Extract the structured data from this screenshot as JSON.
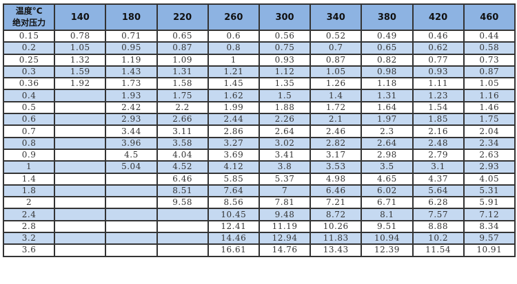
{
  "table": {
    "corner_line1": "温度°C",
    "corner_line2": "绝对压力",
    "columns": [
      "140",
      "180",
      "220",
      "260",
      "300",
      "340",
      "380",
      "420",
      "460"
    ],
    "rows": [
      {
        "pressure": "0.15",
        "values": [
          "0.78",
          "0.71",
          "0.65",
          "0.6",
          "0.56",
          "0.52",
          "0.49",
          "0.46",
          "0.44"
        ]
      },
      {
        "pressure": "0.2",
        "values": [
          "1.05",
          "0.95",
          "0.87",
          "0.8",
          "0.75",
          "0.7",
          "0.65",
          "0.62",
          "0.58"
        ]
      },
      {
        "pressure": "0.25",
        "values": [
          "1.32",
          "1.19",
          "1.09",
          "1",
          "0.93",
          "0.87",
          "0.82",
          "0.77",
          "0.73"
        ]
      },
      {
        "pressure": "0.3",
        "values": [
          "1.59",
          "1.43",
          "1.31",
          "1.21",
          "1.12",
          "1.05",
          "0.98",
          "0.93",
          "0.87"
        ]
      },
      {
        "pressure": "0.36",
        "values": [
          "1.92",
          "1.73",
          "1.58",
          "1.45",
          "1.35",
          "1.26",
          "1.18",
          "1.11",
          "1.05"
        ]
      },
      {
        "pressure": "0.4",
        "values": [
          "",
          "1.93",
          "1.75",
          "1.62",
          "1.5",
          "1.4",
          "1.31",
          "1.23",
          "1.16"
        ]
      },
      {
        "pressure": "0.5",
        "values": [
          "",
          "2.42",
          "2.2",
          "1.99",
          "1.88",
          "1.72",
          "1.64",
          "1.54",
          "1.46"
        ]
      },
      {
        "pressure": "0.6",
        "values": [
          "",
          "2.93",
          "2.66",
          "2.44",
          "2.26",
          "2.1",
          "1.97",
          "1.85",
          "1.75"
        ]
      },
      {
        "pressure": "0.7",
        "values": [
          "",
          "3.44",
          "3.11",
          "2.86",
          "2.64",
          "2.46",
          "2.3",
          "2.16",
          "2.04"
        ]
      },
      {
        "pressure": "0.8",
        "values": [
          "",
          "3.96",
          "3.58",
          "3.27",
          "3.02",
          "2.82",
          "2.64",
          "2.48",
          "2.34"
        ]
      },
      {
        "pressure": "0.9",
        "values": [
          "",
          "4.5",
          "4.04",
          "3.69",
          "3.41",
          "3.17",
          "2.98",
          "2.79",
          "2.63"
        ]
      },
      {
        "pressure": "1",
        "values": [
          "",
          "5.04",
          "4.52",
          "4.12",
          "3.8",
          "3.53",
          "3.5",
          "3.1",
          "2.93"
        ]
      },
      {
        "pressure": "1.4",
        "values": [
          "",
          "",
          "6.46",
          "5.85",
          "5.37",
          "4.98",
          "4.65",
          "4.37",
          "4.05"
        ]
      },
      {
        "pressure": "1.8",
        "values": [
          "",
          "",
          "8.51",
          "7.64",
          "7",
          "6.46",
          "6.02",
          "5.64",
          "5.31"
        ]
      },
      {
        "pressure": "2",
        "values": [
          "",
          "",
          "9.58",
          "8.56",
          "7.81",
          "7.21",
          "6.71",
          "6.28",
          "5.91"
        ]
      },
      {
        "pressure": "2.4",
        "values": [
          "",
          "",
          "",
          "10.45",
          "9.48",
          "8.72",
          "8.1",
          "7.57",
          "7.12"
        ]
      },
      {
        "pressure": "2.8",
        "values": [
          "",
          "",
          "",
          "12.41",
          "11.19",
          "10.26",
          "9.51",
          "8.88",
          "8.34"
        ]
      },
      {
        "pressure": "3.2",
        "values": [
          "",
          "",
          "",
          "14.46",
          "12.94",
          "11.83",
          "10.94",
          "10.2",
          "9.57"
        ]
      },
      {
        "pressure": "3.6",
        "values": [
          "",
          "",
          "",
          "16.61",
          "14.76",
          "13.43",
          "12.39",
          "11.54",
          "10.91"
        ]
      }
    ]
  },
  "colors": {
    "header": "#8db3e2",
    "alt_row": "#c5d9f1",
    "border": "#333333"
  }
}
